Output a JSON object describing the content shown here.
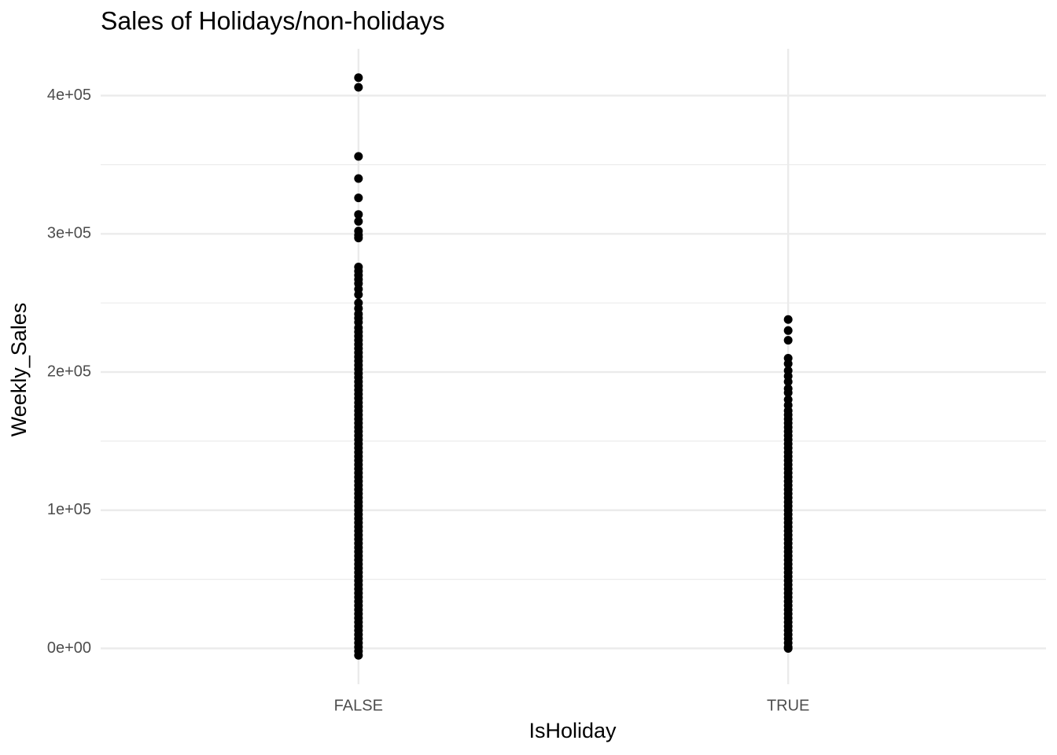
{
  "chart_data": {
    "type": "strip",
    "title": "Sales of Holidays/non-holidays",
    "x_label": "IsHoliday",
    "y_label": "Weekly_Sales",
    "categories": [
      "FALSE",
      "TRUE"
    ],
    "series": [
      {
        "color": "#000000",
        "values": [
          413000,
          406000,
          356000,
          340000,
          326000,
          314000,
          309000,
          302000,
          299000,
          297000,
          276000,
          273000,
          270000,
          267000,
          264000,
          260000,
          256000,
          250000,
          246000,
          242000,
          239000,
          236000,
          232000,
          229000,
          226000,
          223000,
          220000,
          217000,
          214000,
          211000,
          208000,
          205000,
          202000,
          199000,
          196000,
          193000,
          190000,
          187000,
          184000,
          181000,
          178000,
          175000,
          172000,
          169000,
          166000,
          163000,
          160000,
          157000,
          154000,
          151000,
          148000,
          145000,
          142000,
          139000,
          136000,
          133000,
          130000,
          127000,
          124000,
          121000,
          118000,
          115000,
          112000,
          109000,
          106000,
          103000,
          100000,
          97000,
          94000,
          91000,
          88000,
          85000,
          82000,
          79000,
          76000,
          73000,
          70000,
          67000,
          64000,
          61000,
          58000,
          55000,
          52000,
          49000,
          46000,
          43000,
          40000,
          37000,
          34000,
          31000,
          28000,
          25000,
          22000,
          19000,
          16000,
          13000,
          10000,
          7000,
          4000,
          1000,
          -2000,
          -5000
        ]
      },
      {
        "color": "#000000",
        "values": [
          238000,
          230000,
          223000,
          210000,
          206000,
          201000,
          197000,
          193000,
          188000,
          185000,
          180000,
          176000,
          172000,
          169000,
          166000,
          163000,
          160000,
          157000,
          154000,
          151000,
          148000,
          145000,
          142000,
          139000,
          136000,
          133000,
          130000,
          127000,
          124000,
          121000,
          118000,
          115000,
          112000,
          109000,
          106000,
          103000,
          100000,
          97000,
          94000,
          91000,
          88000,
          85000,
          82000,
          79000,
          76000,
          73000,
          70000,
          67000,
          64000,
          61000,
          58000,
          55000,
          52000,
          49000,
          46000,
          43000,
          40000,
          37000,
          34000,
          31000,
          28000,
          25000,
          22000,
          19000,
          16000,
          13000,
          10000,
          7000,
          4000,
          1000,
          0
        ]
      }
    ],
    "ylim": [
      -25900,
      433900
    ],
    "yticks": [
      {
        "value": 0,
        "label": "0e+00"
      },
      {
        "value": 100000,
        "label": "1e+05"
      },
      {
        "value": 200000,
        "label": "2e+05"
      },
      {
        "value": 300000,
        "label": "3e+05"
      },
      {
        "value": 400000,
        "label": "4e+05"
      }
    ],
    "minor_yticks": [
      50000,
      150000,
      250000,
      350000
    ],
    "grid": true
  }
}
